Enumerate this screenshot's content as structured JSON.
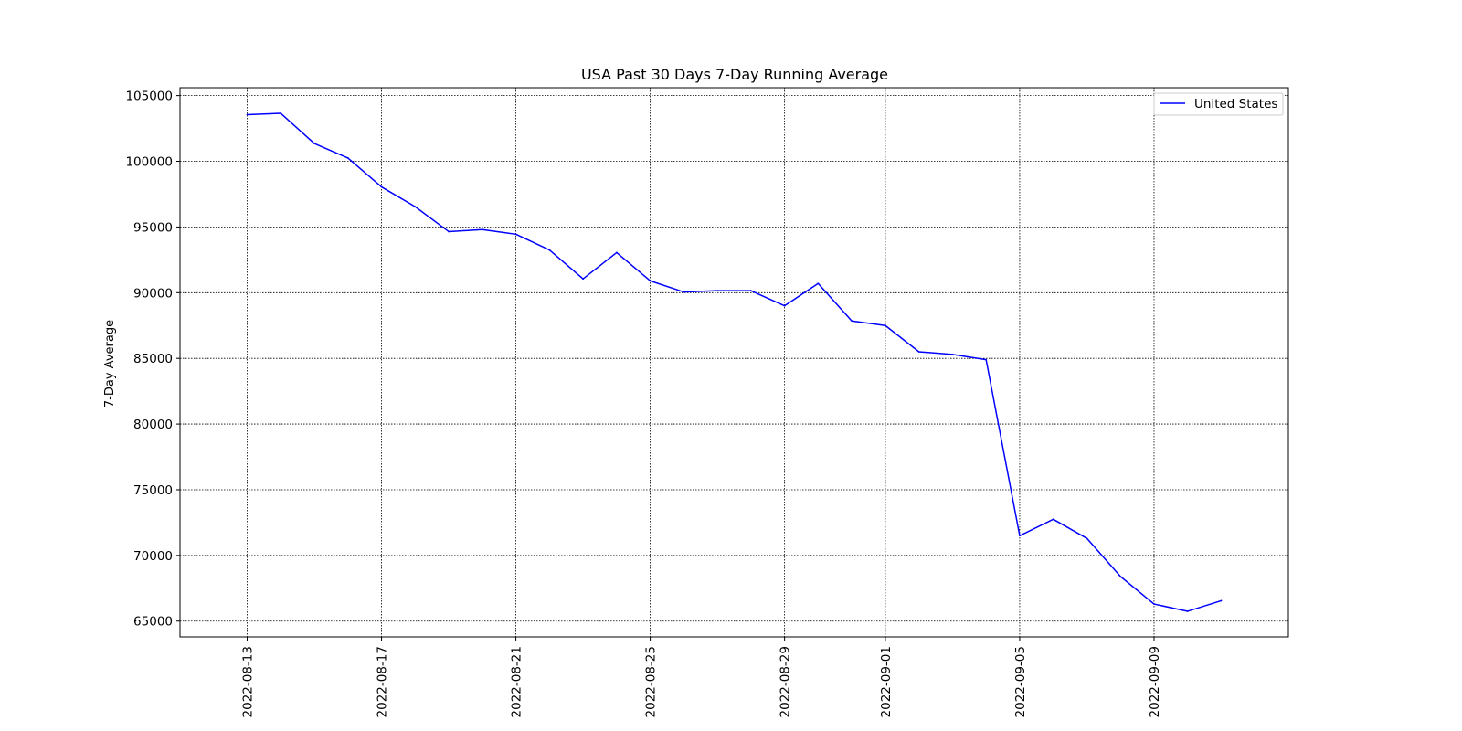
{
  "chart_data": {
    "type": "line",
    "title": "USA Past 30 Days 7-Day Running Average",
    "xlabel": "",
    "ylabel": "7-Day Average",
    "x_tick_labels": [
      "2022-08-13",
      "2022-08-17",
      "2022-08-21",
      "2022-08-25",
      "2022-08-29",
      "2022-09-01",
      "2022-09-05",
      "2022-09-09"
    ],
    "y_tick_labels": [
      "65000",
      "70000",
      "75000",
      "80000",
      "85000",
      "90000",
      "95000",
      "100000",
      "105000"
    ],
    "xlim": [
      "2022-08-11",
      "2022-09-13"
    ],
    "ylim": [
      63800,
      105600
    ],
    "grid": true,
    "legend": "top-right",
    "colors": {
      "series": "#0000ff",
      "grid": "#000000",
      "axes": "#000000"
    },
    "series": [
      {
        "name": "United States",
        "x": [
          "2022-08-13",
          "2022-08-14",
          "2022-08-15",
          "2022-08-16",
          "2022-08-17",
          "2022-08-18",
          "2022-08-19",
          "2022-08-20",
          "2022-08-21",
          "2022-08-22",
          "2022-08-23",
          "2022-08-24",
          "2022-08-25",
          "2022-08-26",
          "2022-08-27",
          "2022-08-28",
          "2022-08-29",
          "2022-08-30",
          "2022-08-31",
          "2022-09-01",
          "2022-09-02",
          "2022-09-03",
          "2022-09-04",
          "2022-09-05",
          "2022-09-06",
          "2022-09-07",
          "2022-09-08",
          "2022-09-09",
          "2022-09-10",
          "2022-09-11"
        ],
        "values": [
          103550,
          103650,
          101350,
          100250,
          98050,
          96550,
          94650,
          94800,
          94450,
          93250,
          91050,
          93050,
          90900,
          90050,
          90150,
          90150,
          89000,
          90700,
          87850,
          87500,
          85500,
          85300,
          84900,
          71500,
          72750,
          71300,
          68400,
          66300,
          65750,
          66550
        ]
      }
    ]
  }
}
